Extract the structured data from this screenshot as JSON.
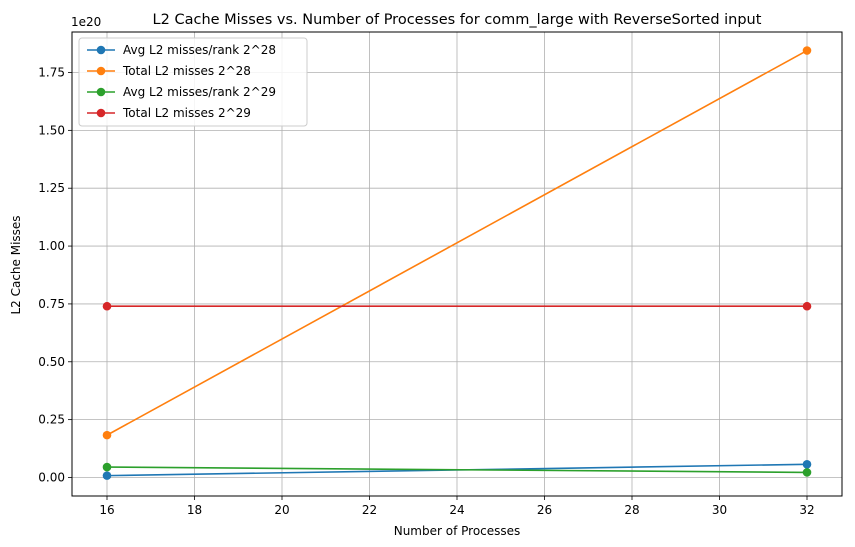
{
  "chart_data": {
    "type": "line",
    "title": "L2 Cache Misses vs. Number of Processes for comm_large with ReverseSorted input",
    "xlabel": "Number of Processes",
    "ylabel": "L2 Cache Misses",
    "y_offset_label": "1e20",
    "x": [
      16,
      32
    ],
    "xlim": [
      15.2,
      32.8
    ],
    "ylim": [
      -0.08,
      1.925
    ],
    "y_scale": 1e+20,
    "xticks": [
      16,
      18,
      20,
      22,
      24,
      26,
      28,
      30,
      32
    ],
    "yticks": [
      0.0,
      0.25,
      0.5,
      0.75,
      1.0,
      1.25,
      1.5,
      1.75
    ],
    "ytick_labels": [
      "0.00",
      "0.25",
      "0.50",
      "0.75",
      "1.00",
      "1.25",
      "1.50",
      "1.75"
    ],
    "grid": true,
    "legend_position": "top-left",
    "series": [
      {
        "name": "Avg L2 misses/rank 2^28",
        "color": "#1f77b4",
        "values": [
          0.008,
          0.057
        ]
      },
      {
        "name": "Total L2 misses 2^28",
        "color": "#ff7f0e",
        "values": [
          0.183,
          1.845
        ]
      },
      {
        "name": "Avg L2 misses/rank 2^29",
        "color": "#2ca02c",
        "values": [
          0.045,
          0.022
        ]
      },
      {
        "name": "Total L2 misses 2^29",
        "color": "#d62728",
        "values": [
          0.74,
          0.74
        ]
      }
    ]
  }
}
